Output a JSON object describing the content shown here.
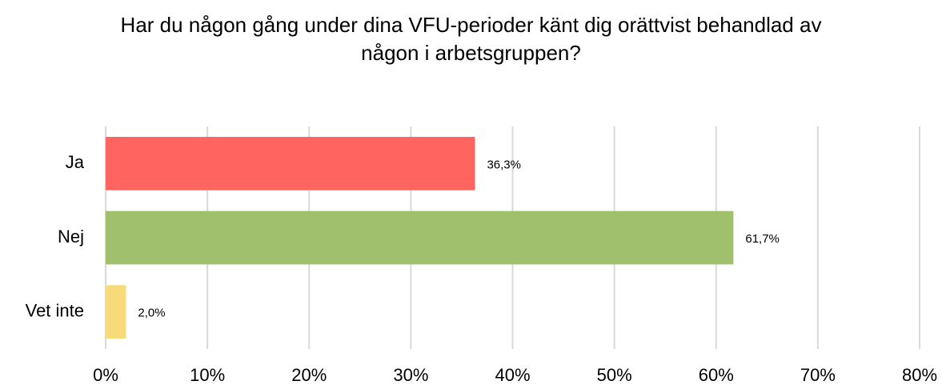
{
  "chart_data": {
    "type": "hbar",
    "title": "Har du någon gång under dina VFU-perioder känt dig orättvist behandlad av någon i arbetsgruppen?",
    "categories": [
      "Ja",
      "Nej",
      "Vet inte"
    ],
    "values": [
      36.3,
      61.7,
      2.0
    ],
    "value_labels": [
      "36,3%",
      "61,7%",
      "2,0%"
    ],
    "colors": [
      "#ff6461",
      "#a0c06e",
      "#f7da79"
    ],
    "xlim": [
      0,
      80
    ],
    "xticks": [
      {
        "value": 0,
        "label": "0%"
      },
      {
        "value": 10,
        "label": "10%"
      },
      {
        "value": 20,
        "label": "20%"
      },
      {
        "value": 30,
        "label": "30%"
      },
      {
        "value": 40,
        "label": "40%"
      },
      {
        "value": 50,
        "label": "50%"
      },
      {
        "value": 60,
        "label": "60%"
      },
      {
        "value": 70,
        "label": "70%"
      },
      {
        "value": 80,
        "label": "80%"
      }
    ],
    "grid": true
  }
}
